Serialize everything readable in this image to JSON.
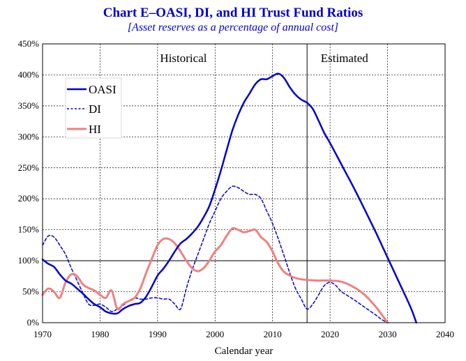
{
  "chart_data": {
    "type": "line",
    "title": "Chart E–OASI, DI, and HI Trust Fund Ratios",
    "subtitle": "[Asset reserves as a percentage of annual cost]",
    "xlabel": "Calendar year",
    "ylabel": "",
    "xlim": [
      1970,
      2040
    ],
    "ylim": [
      0,
      450
    ],
    "x_ticks": [
      "1970",
      "1980",
      "1990",
      "2000",
      "2010",
      "2020",
      "2030",
      "2040"
    ],
    "y_ticks": [
      "0%",
      "50%",
      "100%",
      "150%",
      "200%",
      "250%",
      "300%",
      "350%",
      "400%",
      "450%"
    ],
    "reference_line_y": 100,
    "divider_x": 2016,
    "regions": [
      "Historical",
      "Estimated"
    ],
    "grid": true,
    "legend_position": "top-left",
    "series": [
      {
        "name": "OASI",
        "color": "#0000cc",
        "style": "solid",
        "points": [
          [
            1970,
            102
          ],
          [
            1971,
            95
          ],
          [
            1972,
            90
          ],
          [
            1973,
            78
          ],
          [
            1974,
            68
          ],
          [
            1975,
            63
          ],
          [
            1976,
            55
          ],
          [
            1977,
            47
          ],
          [
            1978,
            38
          ],
          [
            1979,
            30
          ],
          [
            1980,
            25
          ],
          [
            1981,
            18
          ],
          [
            1982,
            15
          ],
          [
            1983,
            15
          ],
          [
            1984,
            22
          ],
          [
            1985,
            27
          ],
          [
            1986,
            30
          ],
          [
            1987,
            32
          ],
          [
            1988,
            42
          ],
          [
            1989,
            58
          ],
          [
            1990,
            76
          ],
          [
            1991,
            87
          ],
          [
            1992,
            100
          ],
          [
            1993,
            115
          ],
          [
            1994,
            128
          ],
          [
            1995,
            135
          ],
          [
            1996,
            144
          ],
          [
            1997,
            155
          ],
          [
            1998,
            170
          ],
          [
            1999,
            188
          ],
          [
            2000,
            215
          ],
          [
            2001,
            245
          ],
          [
            2002,
            278
          ],
          [
            2003,
            310
          ],
          [
            2004,
            335
          ],
          [
            2005,
            355
          ],
          [
            2006,
            370
          ],
          [
            2007,
            385
          ],
          [
            2008,
            393
          ],
          [
            2009,
            393
          ],
          [
            2010,
            398
          ],
          [
            2011,
            402
          ],
          [
            2012,
            395
          ],
          [
            2013,
            380
          ],
          [
            2014,
            368
          ],
          [
            2015,
            360
          ],
          [
            2016,
            355
          ],
          [
            2017,
            345
          ],
          [
            2018,
            326
          ],
          [
            2019,
            306
          ],
          [
            2020,
            290
          ],
          [
            2022,
            255
          ],
          [
            2024,
            220
          ],
          [
            2026,
            183
          ],
          [
            2028,
            145
          ],
          [
            2030,
            105
          ],
          [
            2032,
            65
          ],
          [
            2034,
            25
          ],
          [
            2035,
            0
          ]
        ]
      },
      {
        "name": "DI",
        "color": "#0000cc",
        "style": "dashed",
        "points": [
          [
            1970,
            125
          ],
          [
            1971,
            140
          ],
          [
            1972,
            138
          ],
          [
            1973,
            125
          ],
          [
            1974,
            110
          ],
          [
            1975,
            88
          ],
          [
            1976,
            68
          ],
          [
            1977,
            48
          ],
          [
            1978,
            30
          ],
          [
            1979,
            28
          ],
          [
            1980,
            30
          ],
          [
            1981,
            25
          ],
          [
            1982,
            18
          ],
          [
            1983,
            22
          ],
          [
            1984,
            28
          ],
          [
            1985,
            35
          ],
          [
            1986,
            40
          ],
          [
            1987,
            38
          ],
          [
            1988,
            38
          ],
          [
            1989,
            40
          ],
          [
            1990,
            40
          ],
          [
            1991,
            38
          ],
          [
            1992,
            38
          ],
          [
            1993,
            30
          ],
          [
            1994,
            22
          ],
          [
            1995,
            55
          ],
          [
            1996,
            85
          ],
          [
            1997,
            110
          ],
          [
            1998,
            135
          ],
          [
            1999,
            160
          ],
          [
            2000,
            180
          ],
          [
            2001,
            200
          ],
          [
            2002,
            212
          ],
          [
            2003,
            220
          ],
          [
            2004,
            218
          ],
          [
            2005,
            212
          ],
          [
            2006,
            207
          ],
          [
            2007,
            207
          ],
          [
            2008,
            200
          ],
          [
            2009,
            180
          ],
          [
            2010,
            160
          ],
          [
            2011,
            135
          ],
          [
            2012,
            108
          ],
          [
            2013,
            80
          ],
          [
            2014,
            55
          ],
          [
            2015,
            38
          ],
          [
            2016,
            22
          ],
          [
            2017,
            30
          ],
          [
            2018,
            45
          ],
          [
            2019,
            60
          ],
          [
            2020,
            65
          ],
          [
            2021,
            60
          ],
          [
            2022,
            50
          ],
          [
            2024,
            38
          ],
          [
            2026,
            25
          ],
          [
            2028,
            12
          ],
          [
            2029,
            5
          ],
          [
            2030,
            0
          ]
        ]
      },
      {
        "name": "HI",
        "color": "#f08080",
        "style": "solid",
        "points": [
          [
            1970,
            45
          ],
          [
            1971,
            55
          ],
          [
            1972,
            50
          ],
          [
            1973,
            40
          ],
          [
            1974,
            65
          ],
          [
            1975,
            78
          ],
          [
            1976,
            75
          ],
          [
            1977,
            62
          ],
          [
            1978,
            56
          ],
          [
            1979,
            52
          ],
          [
            1980,
            45
          ],
          [
            1981,
            40
          ],
          [
            1982,
            52
          ],
          [
            1983,
            22
          ],
          [
            1984,
            30
          ],
          [
            1985,
            35
          ],
          [
            1986,
            40
          ],
          [
            1987,
            55
          ],
          [
            1988,
            80
          ],
          [
            1989,
            103
          ],
          [
            1990,
            125
          ],
          [
            1991,
            135
          ],
          [
            1992,
            135
          ],
          [
            1993,
            128
          ],
          [
            1994,
            115
          ],
          [
            1995,
            100
          ],
          [
            1996,
            88
          ],
          [
            1997,
            83
          ],
          [
            1998,
            88
          ],
          [
            1999,
            100
          ],
          [
            2000,
            115
          ],
          [
            2001,
            125
          ],
          [
            2002,
            140
          ],
          [
            2003,
            152
          ],
          [
            2004,
            150
          ],
          [
            2005,
            146
          ],
          [
            2006,
            148
          ],
          [
            2007,
            150
          ],
          [
            2008,
            138
          ],
          [
            2009,
            130
          ],
          [
            2010,
            115
          ],
          [
            2011,
            95
          ],
          [
            2012,
            82
          ],
          [
            2013,
            76
          ],
          [
            2014,
            72
          ],
          [
            2015,
            70
          ],
          [
            2016,
            69
          ],
          [
            2018,
            68
          ],
          [
            2020,
            68
          ],
          [
            2022,
            66
          ],
          [
            2024,
            58
          ],
          [
            2026,
            45
          ],
          [
            2028,
            25
          ],
          [
            2030,
            0
          ]
        ]
      }
    ]
  }
}
